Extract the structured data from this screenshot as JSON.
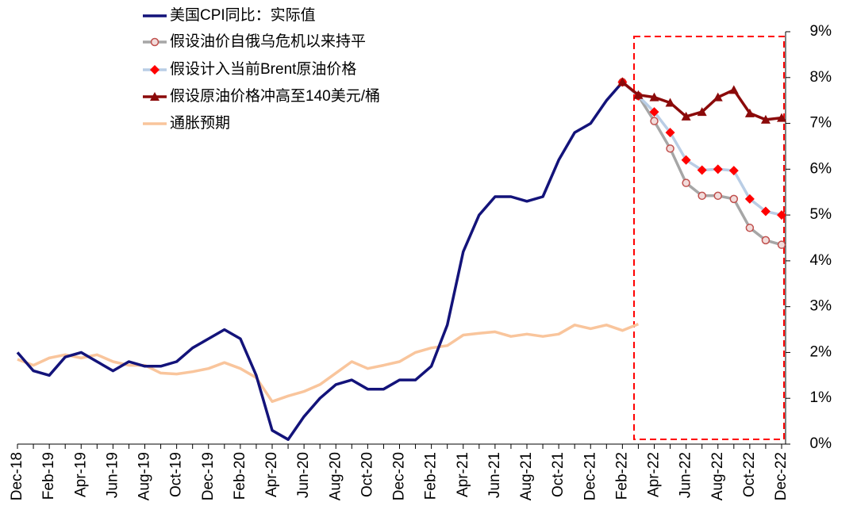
{
  "chart_data": {
    "type": "line",
    "categories": [
      "Dec-18",
      null,
      "Feb-19",
      null,
      "Apr-19",
      null,
      "Jun-19",
      null,
      "Aug-19",
      null,
      "Oct-19",
      null,
      "Dec-19",
      null,
      "Feb-20",
      null,
      "Apr-20",
      null,
      "Jun-20",
      null,
      "Aug-20",
      null,
      "Oct-20",
      null,
      "Dec-20",
      null,
      "Feb-21",
      null,
      "Apr-21",
      null,
      "Jun-21",
      null,
      "Aug-21",
      null,
      "Oct-21",
      null,
      "Dec-21",
      null,
      "Feb-22",
      null,
      "Apr-22",
      null,
      "Jun-22",
      null,
      "Aug-22",
      null,
      "Oct-22",
      null,
      "Dec-22"
    ],
    "series": [
      {
        "name": "美国CPI同比：实际值",
        "color": "#13137a",
        "marker": "none",
        "values": [
          2.0,
          1.6,
          1.5,
          1.9,
          2.0,
          1.8,
          1.6,
          1.8,
          1.7,
          1.7,
          1.8,
          2.1,
          2.3,
          2.5,
          2.3,
          1.5,
          0.3,
          0.1,
          0.6,
          1.0,
          1.3,
          1.4,
          1.2,
          1.2,
          1.4,
          1.4,
          1.7,
          2.6,
          4.2,
          5.0,
          5.4,
          5.4,
          5.3,
          5.4,
          6.2,
          6.8,
          7.0,
          7.5,
          7.9,
          null,
          null,
          null,
          null,
          null,
          null,
          null,
          null,
          null,
          null
        ]
      },
      {
        "name": "假设油价自俄乌危机以来持平",
        "color": "#a6a6a6",
        "marker": "circle",
        "marker_color": "#c0504d",
        "values": [
          null,
          null,
          null,
          null,
          null,
          null,
          null,
          null,
          null,
          null,
          null,
          null,
          null,
          null,
          null,
          null,
          null,
          null,
          null,
          null,
          null,
          null,
          null,
          null,
          null,
          null,
          null,
          null,
          null,
          null,
          null,
          null,
          null,
          null,
          null,
          null,
          null,
          null,
          7.9,
          7.6,
          7.05,
          6.45,
          5.7,
          5.42,
          5.42,
          5.35,
          4.72,
          4.45,
          4.35
        ]
      },
      {
        "name": "假设计入当前Brent原油价格",
        "color": "#b9cde5",
        "marker": "diamond",
        "marker_color": "#ff0000",
        "values": [
          null,
          null,
          null,
          null,
          null,
          null,
          null,
          null,
          null,
          null,
          null,
          null,
          null,
          null,
          null,
          null,
          null,
          null,
          null,
          null,
          null,
          null,
          null,
          null,
          null,
          null,
          null,
          null,
          null,
          null,
          null,
          null,
          null,
          null,
          null,
          null,
          null,
          null,
          7.9,
          7.6,
          7.25,
          6.8,
          6.2,
          5.98,
          6.0,
          5.97,
          5.35,
          5.08,
          5.0
        ]
      },
      {
        "name": "假设原油价格冲高至140美元/桶",
        "color": "#8b0a0a",
        "marker": "triangle",
        "marker_color": "#8b0a0a",
        "values": [
          null,
          null,
          null,
          null,
          null,
          null,
          null,
          null,
          null,
          null,
          null,
          null,
          null,
          null,
          null,
          null,
          null,
          null,
          null,
          null,
          null,
          null,
          null,
          null,
          null,
          null,
          null,
          null,
          null,
          null,
          null,
          null,
          null,
          null,
          null,
          null,
          null,
          null,
          7.9,
          7.62,
          7.57,
          7.45,
          7.15,
          7.25,
          7.57,
          7.73,
          7.22,
          7.08,
          7.12
        ]
      },
      {
        "name": "通胀预期",
        "color": "#f9c59c",
        "marker": "none",
        "values": [
          1.85,
          1.72,
          1.88,
          1.95,
          1.88,
          1.95,
          1.8,
          1.72,
          1.72,
          1.55,
          1.53,
          1.58,
          1.65,
          1.78,
          1.65,
          1.45,
          0.93,
          1.05,
          1.15,
          1.3,
          1.55,
          1.8,
          1.65,
          1.72,
          1.8,
          2.0,
          2.1,
          2.15,
          2.38,
          2.42,
          2.45,
          2.35,
          2.4,
          2.35,
          2.4,
          2.6,
          2.52,
          2.6,
          2.48,
          2.62,
          null,
          null,
          null,
          null,
          null,
          null,
          null,
          null,
          null
        ]
      }
    ],
    "ylim": [
      0,
      9
    ],
    "yticks": [
      {
        "value": 0,
        "label": "0%"
      },
      {
        "value": 1,
        "label": "1%"
      },
      {
        "value": 2,
        "label": "2%"
      },
      {
        "value": 3,
        "label": "3%"
      },
      {
        "value": 4,
        "label": "4%"
      },
      {
        "value": 5,
        "label": "5%"
      },
      {
        "value": 6,
        "label": "6%"
      },
      {
        "value": 7,
        "label": "7%"
      },
      {
        "value": 8,
        "label": "8%"
      },
      {
        "value": 9,
        "label": "9%"
      }
    ],
    "y_axis_side": "right",
    "grid": false,
    "legend": "upper left"
  }
}
